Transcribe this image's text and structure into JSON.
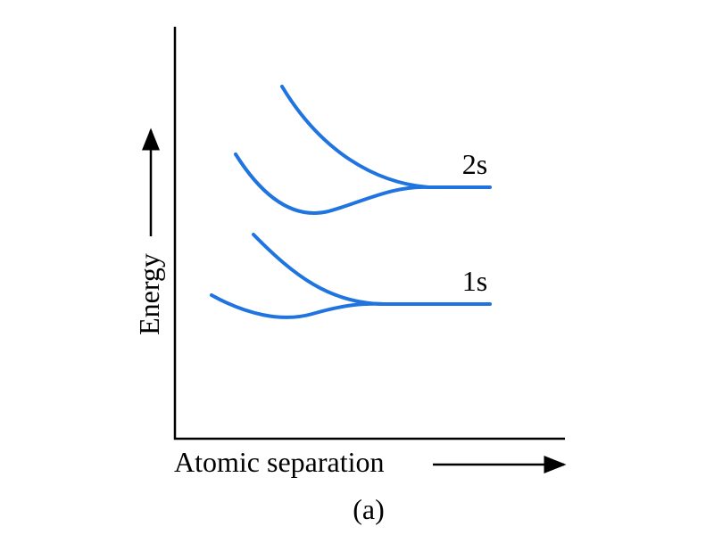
{
  "y_axis_label": "Energy",
  "x_axis_label": "Atomic separation",
  "curves": [
    {
      "label": "2s"
    },
    {
      "label": "1s"
    }
  ],
  "caption": "(a)"
}
